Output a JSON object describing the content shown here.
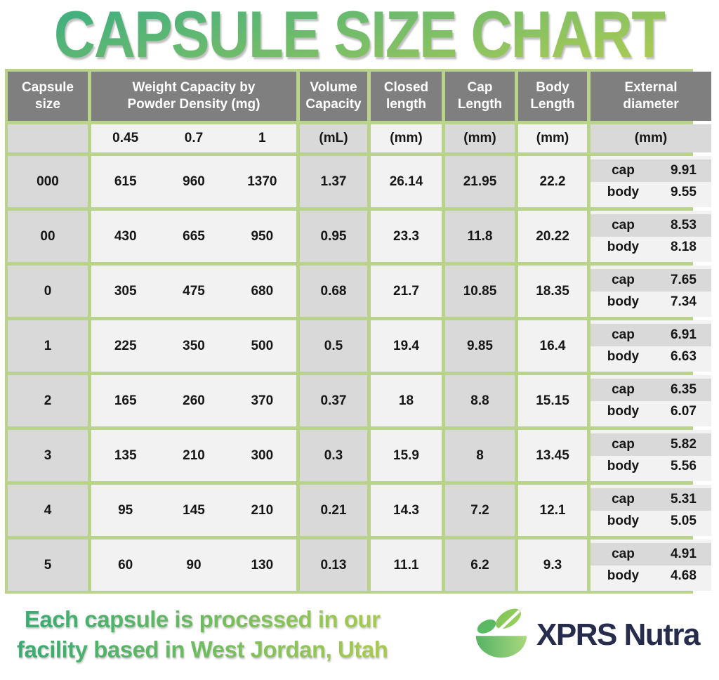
{
  "title": "CAPSULE SIZE CHART",
  "colors": {
    "border_green": "#b9d48a",
    "header_gray": "#7f7f7f",
    "cell_gray": "#d9d9d9",
    "cell_light": "#f2f2f2",
    "title_gradient_start": "#43b07e",
    "title_gradient_end": "#a8ca55",
    "brand_navy": "#272c4d"
  },
  "chart_data": {
    "type": "table",
    "title": "CAPSULE SIZE CHART",
    "header": {
      "capsule_size": "Capsule size",
      "weight_capacity": "Weight Capacity by Powder Density (mg)",
      "volume_capacity": "Volume Capacity",
      "closed_length": "Closed length",
      "cap_length": "Cap Length",
      "body_length": "Body Length",
      "external_diameter": "External diameter"
    },
    "units": {
      "densities": [
        "0.45",
        "0.7",
        "1"
      ],
      "volume": "(mL)",
      "closed": "(mm)",
      "cap": "(mm)",
      "body": "(mm)",
      "external": "(mm)"
    },
    "ext_labels": {
      "cap": "cap",
      "body": "body"
    },
    "rows": [
      {
        "size": "000",
        "weights": [
          "615",
          "960",
          "1370"
        ],
        "volume": "1.37",
        "closed": "26.14",
        "cap_length": "21.95",
        "body_length": "22.2",
        "ext_cap": "9.91",
        "ext_body": "9.55"
      },
      {
        "size": "00",
        "weights": [
          "430",
          "665",
          "950"
        ],
        "volume": "0.95",
        "closed": "23.3",
        "cap_length": "11.8",
        "body_length": "20.22",
        "ext_cap": "8.53",
        "ext_body": "8.18"
      },
      {
        "size": "0",
        "weights": [
          "305",
          "475",
          "680"
        ],
        "volume": "0.68",
        "closed": "21.7",
        "cap_length": "10.85",
        "body_length": "18.35",
        "ext_cap": "7.65",
        "ext_body": "7.34"
      },
      {
        "size": "1",
        "weights": [
          "225",
          "350",
          "500"
        ],
        "volume": "0.5",
        "closed": "19.4",
        "cap_length": "9.85",
        "body_length": "16.4",
        "ext_cap": "6.91",
        "ext_body": "6.63"
      },
      {
        "size": "2",
        "weights": [
          "165",
          "260",
          "370"
        ],
        "volume": "0.37",
        "closed": "18",
        "cap_length": "8.8",
        "body_length": "15.15",
        "ext_cap": "6.35",
        "ext_body": "6.07"
      },
      {
        "size": "3",
        "weights": [
          "135",
          "210",
          "300"
        ],
        "volume": "0.3",
        "closed": "15.9",
        "cap_length": "8",
        "body_length": "13.45",
        "ext_cap": "5.82",
        "ext_body": "5.56"
      },
      {
        "size": "4",
        "weights": [
          "95",
          "145",
          "210"
        ],
        "volume": "0.21",
        "closed": "14.3",
        "cap_length": "7.2",
        "body_length": "12.1",
        "ext_cap": "5.31",
        "ext_body": "5.05"
      },
      {
        "size": "5",
        "weights": [
          "60",
          "90",
          "130"
        ],
        "volume": "0.13",
        "closed": "11.1",
        "cap_length": "6.2",
        "body_length": "9.3",
        "ext_cap": "4.91",
        "ext_body": "4.68"
      }
    ]
  },
  "footer": {
    "tagline_line1": "Each capsule is processed in our",
    "tagline_line2": "facility based in West Jordan, Utah",
    "brand": "XPRS Nutra"
  }
}
